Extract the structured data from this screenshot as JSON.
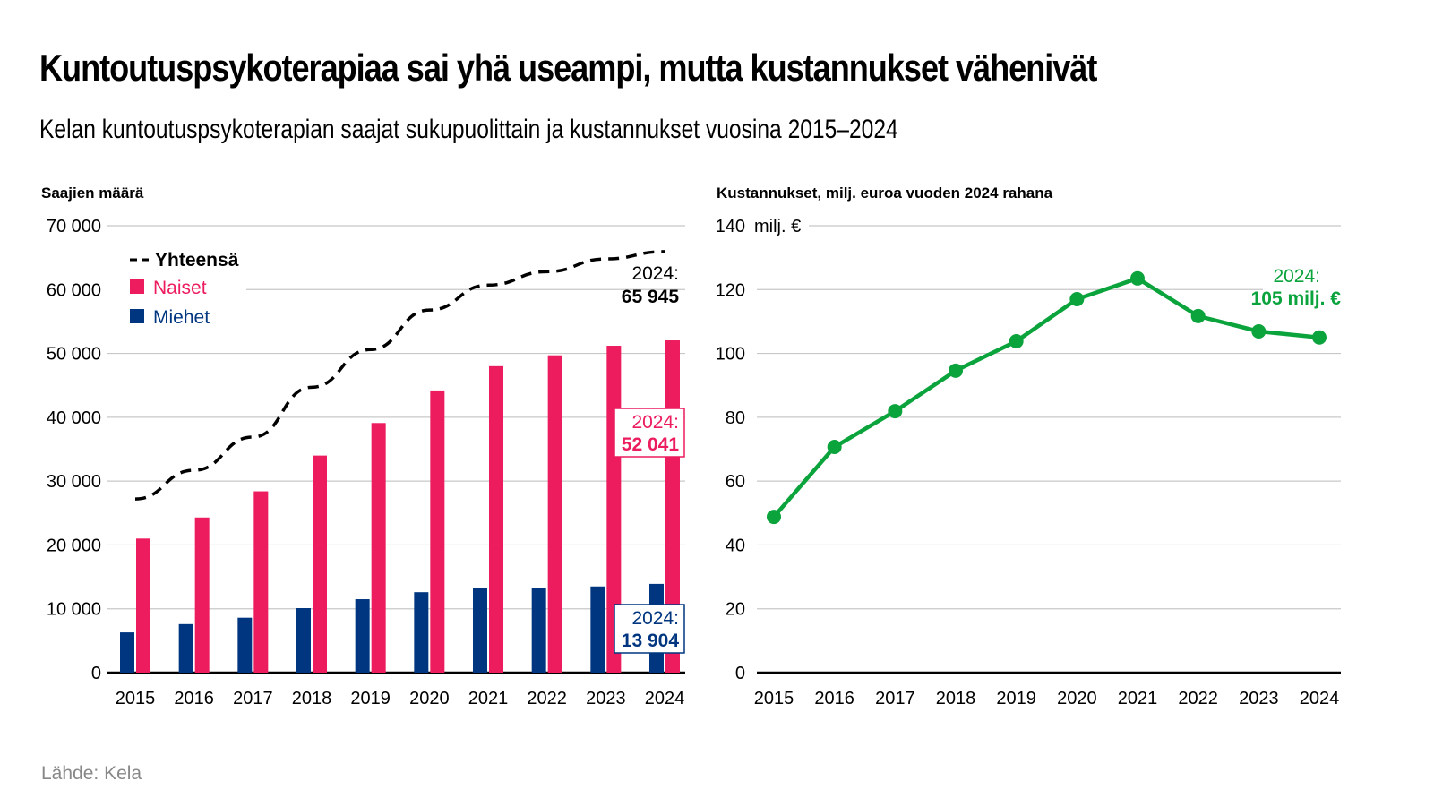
{
  "title": "Kuntoutuspsykoterapiaa sai yhä useampi, mutta kustannukset vähenivät",
  "subtitle": "Kelan kuntoutuspsykoterapian saajat sukupuolittain ja kustannukset vuosina 2015–2024",
  "source": "Lähde: Kela",
  "colors": {
    "naiset": "#ec1c5e",
    "miehet": "#003680",
    "total": "#000000",
    "cost": "#0aa33c",
    "grid": "#c8c8c8"
  },
  "chart_data": [
    {
      "type": "bar",
      "title": "Saajien määrä",
      "xlabel": "",
      "ylabel": "Saajien määrä",
      "ylim": [
        0,
        70000
      ],
      "yticks": [
        0,
        10000,
        20000,
        30000,
        40000,
        50000,
        60000,
        70000
      ],
      "ytick_labels": [
        "0",
        "10 000",
        "20 000",
        "30 000",
        "40 000",
        "50 000",
        "60 000",
        "70 000"
      ],
      "grid": true,
      "legend_position": "top-left",
      "categories": [
        "2015",
        "2016",
        "2017",
        "2018",
        "2019",
        "2020",
        "2021",
        "2022",
        "2023",
        "2024"
      ],
      "series": [
        {
          "name": "Miehet",
          "kind": "bar",
          "values": [
            6300,
            7600,
            8600,
            10100,
            11500,
            12600,
            13200,
            13200,
            13500,
            13904
          ]
        },
        {
          "name": "Naiset",
          "kind": "bar",
          "values": [
            21000,
            24300,
            28400,
            34000,
            39100,
            44200,
            48000,
            49700,
            51200,
            52041
          ]
        },
        {
          "name": "Yhteensä",
          "kind": "dashed-line",
          "values": [
            27200,
            31700,
            36900,
            44700,
            50600,
            56800,
            60700,
            62800,
            64800,
            65945
          ]
        }
      ],
      "legend": [
        "Yhteensä",
        "Naiset",
        "Miehet"
      ],
      "annotations": [
        {
          "series": "Yhteensä",
          "label": "2024:",
          "value": "65 945"
        },
        {
          "series": "Naiset",
          "label": "2024:",
          "value": "52 041"
        },
        {
          "series": "Miehet",
          "label": "2024:",
          "value": "13 904"
        }
      ]
    },
    {
      "type": "line",
      "title": "Kustannukset, milj. euroa vuoden 2024 rahana",
      "xlabel": "",
      "ylabel": "Kustannukset, milj. euroa vuoden 2024 rahana",
      "unit_label": "milj. €",
      "ylim": [
        0,
        140
      ],
      "yticks": [
        0,
        20,
        40,
        60,
        80,
        100,
        120,
        140
      ],
      "ytick_labels": [
        "0",
        "20",
        "40",
        "60",
        "80",
        "100",
        "120",
        "140"
      ],
      "grid": true,
      "categories": [
        "2015",
        "2016",
        "2017",
        "2018",
        "2019",
        "2020",
        "2021",
        "2022",
        "2023",
        "2024"
      ],
      "series": [
        {
          "name": "Kustannukset",
          "values": [
            48.8,
            70.7,
            81.9,
            94.6,
            103.8,
            117,
            123.5,
            111.7,
            106.9,
            105
          ]
        }
      ],
      "annotations": [
        {
          "label": "2024:",
          "value": "105 milj. €"
        }
      ]
    }
  ]
}
